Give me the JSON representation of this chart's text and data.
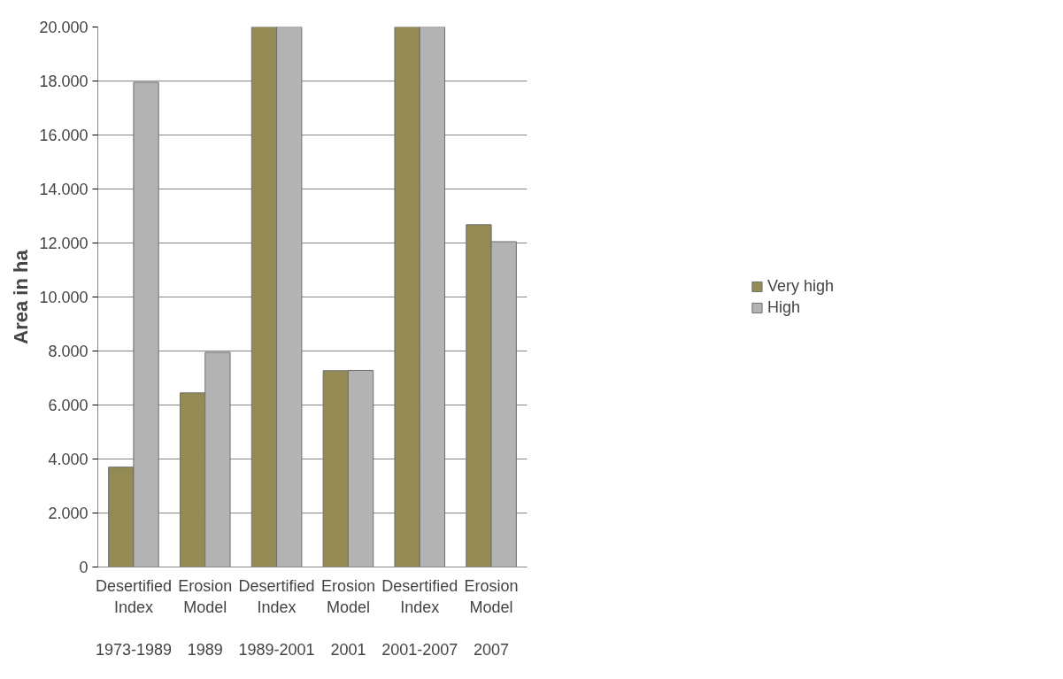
{
  "chart_data": {
    "type": "bar",
    "ylabel": "Area in ha",
    "categories": [
      "Desertified Index\n1973-1989",
      "Erosion Model\n1989",
      "Desertified Index\n1989-2001",
      "Erosion Model\n2001",
      "Desertified Index\n2001-2007",
      "Erosion Model\n2007"
    ],
    "series": [
      {
        "name": "Very high",
        "color": "#948a54",
        "values": [
          3700,
          6450,
          20000,
          7270,
          20000,
          12680
        ]
      },
      {
        "name": "High",
        "color": "#b3b3b3",
        "values": [
          17950,
          7950,
          20000,
          7280,
          20000,
          12050
        ]
      }
    ],
    "ylim": [
      0,
      20000
    ],
    "yticks": [
      {
        "value": 0,
        "label": "0"
      },
      {
        "value": 2000,
        "label": "2.000"
      },
      {
        "value": 4000,
        "label": "4.000"
      },
      {
        "value": 6000,
        "label": "6.000"
      },
      {
        "value": 8000,
        "label": "8.000"
      },
      {
        "value": 10000,
        "label": "10.000"
      },
      {
        "value": 12000,
        "label": "12.000"
      },
      {
        "value": 14000,
        "label": "14.000"
      },
      {
        "value": 16000,
        "label": "16.000"
      },
      {
        "value": 18000,
        "label": "18.000"
      },
      {
        "value": 20000,
        "label": "20.000"
      }
    ],
    "grid": "y",
    "legend": "right"
  }
}
